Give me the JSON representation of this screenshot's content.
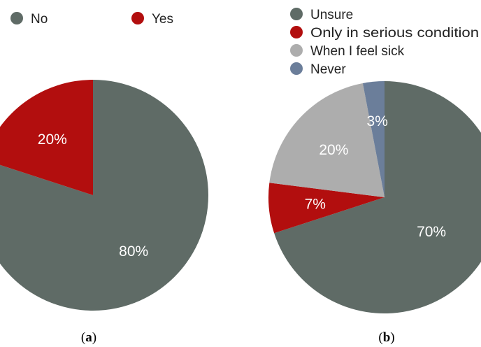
{
  "chart_data": [
    {
      "type": "pie",
      "panel": "(a)",
      "panel_letter": "a",
      "legend_position": "top",
      "slices": [
        {
          "name": "No",
          "value": 80,
          "label": "80%",
          "color": "#5f6b66"
        },
        {
          "name": "Yes",
          "value": 20,
          "label": "20%",
          "color": "#b20e0e"
        }
      ]
    },
    {
      "type": "pie",
      "panel": "(b)",
      "panel_letter": "b",
      "legend_position": "top-right",
      "slices": [
        {
          "name": "Unsure",
          "value": 70,
          "label": "70%",
          "color": "#5f6b66"
        },
        {
          "name": "Only in serious condition",
          "value": 7,
          "label": "7%",
          "color": "#b20e0e"
        },
        {
          "name": "When I feel sick",
          "value": 20,
          "label": "20%",
          "color": "#adadad"
        },
        {
          "name": "Never",
          "value": 3,
          "label": "3%",
          "color": "#6b7e9a"
        }
      ]
    }
  ]
}
